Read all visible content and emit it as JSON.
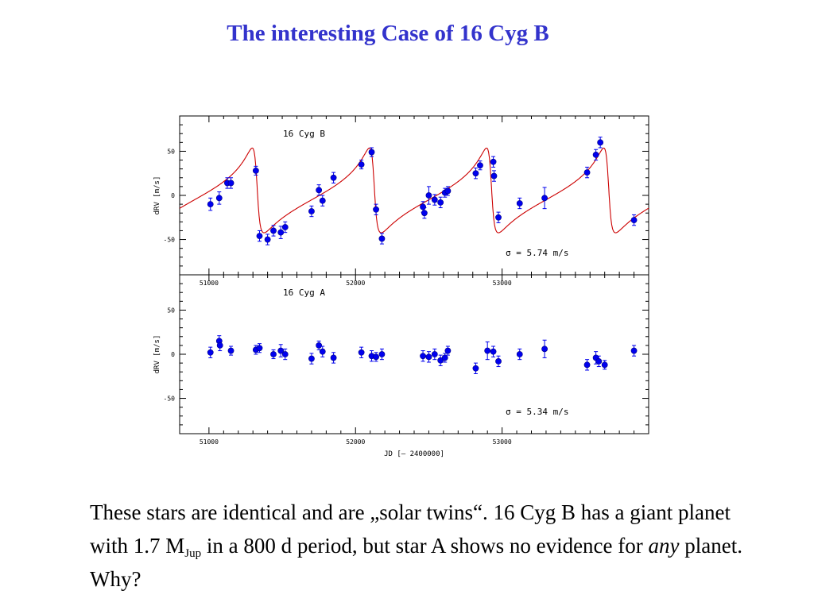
{
  "slide": {
    "title": "The interesting Case of 16 Cyg B",
    "body": {
      "part1": "These stars are identical and are „solar twins“. 16 Cyg B has a giant planet with 1.7 M",
      "sub": "Jup",
      "part2": " in a 800 d period, but star A shows no evidence for ",
      "emphasis": "any",
      "part3": " planet. Why?"
    }
  },
  "colors": {
    "title": "#3333cc",
    "points": "#0000ee",
    "fit_curve": "#cc0000",
    "axes": "#000000"
  },
  "chart_data": [
    {
      "type": "scatter",
      "panel_label": "16 Cyg B",
      "ylabel": "dRV [m/s]",
      "xlabel": "",
      "xlim": [
        50800,
        54000
      ],
      "ylim": [
        -90,
        90
      ],
      "x_ticks": [
        51000,
        52000,
        53000
      ],
      "y_ticks": [
        50,
        0,
        -50
      ],
      "annotation": "σ = 5.74  m/s",
      "points": [
        {
          "x": 51010,
          "y": -10,
          "err": 7
        },
        {
          "x": 51070,
          "y": -3,
          "err": 7
        },
        {
          "x": 51125,
          "y": 14,
          "err": 6
        },
        {
          "x": 51150,
          "y": 14,
          "err": 6
        },
        {
          "x": 51320,
          "y": 28,
          "err": 5
        },
        {
          "x": 51345,
          "y": -46,
          "err": 6
        },
        {
          "x": 51400,
          "y": -50,
          "err": 6
        },
        {
          "x": 51440,
          "y": -40,
          "err": 6
        },
        {
          "x": 51490,
          "y": -42,
          "err": 7
        },
        {
          "x": 51520,
          "y": -36,
          "err": 6
        },
        {
          "x": 51700,
          "y": -18,
          "err": 6
        },
        {
          "x": 51750,
          "y": 6,
          "err": 6
        },
        {
          "x": 51775,
          "y": -6,
          "err": 6
        },
        {
          "x": 51850,
          "y": 20,
          "err": 6
        },
        {
          "x": 52040,
          "y": 35,
          "err": 5
        },
        {
          "x": 52110,
          "y": 49,
          "err": 5
        },
        {
          "x": 52140,
          "y": -16,
          "err": 6
        },
        {
          "x": 52180,
          "y": -49,
          "err": 6
        },
        {
          "x": 52460,
          "y": -13,
          "err": 6
        },
        {
          "x": 52470,
          "y": -20,
          "err": 6
        },
        {
          "x": 52500,
          "y": 0,
          "err": 10
        },
        {
          "x": 52540,
          "y": -5,
          "err": 6
        },
        {
          "x": 52580,
          "y": -8,
          "err": 6
        },
        {
          "x": 52610,
          "y": 3,
          "err": 5
        },
        {
          "x": 52630,
          "y": 5,
          "err": 5
        },
        {
          "x": 52820,
          "y": 25,
          "err": 6
        },
        {
          "x": 52850,
          "y": 34,
          "err": 5
        },
        {
          "x": 52940,
          "y": 38,
          "err": 6
        },
        {
          "x": 52945,
          "y": 22,
          "err": 6
        },
        {
          "x": 52975,
          "y": -25,
          "err": 6
        },
        {
          "x": 53120,
          "y": -9,
          "err": 6
        },
        {
          "x": 53290,
          "y": -3,
          "err": 12
        },
        {
          "x": 53580,
          "y": 26,
          "err": 6
        },
        {
          "x": 53640,
          "y": 46,
          "err": 6
        },
        {
          "x": 53670,
          "y": 60,
          "err": 6
        },
        {
          "x": 53900,
          "y": -28,
          "err": 6
        }
      ],
      "fit_curve": true
    },
    {
      "type": "scatter",
      "panel_label": "16 Cyg A",
      "ylabel": "dRV [m/s]",
      "xlabel": "JD [– 2400000]",
      "xlim": [
        50800,
        54000
      ],
      "ylim": [
        -90,
        90
      ],
      "x_ticks": [
        51000,
        52000,
        53000
      ],
      "y_ticks": [
        50,
        0,
        -50
      ],
      "annotation": "σ = 5.34  m/s",
      "points": [
        {
          "x": 51010,
          "y": 2,
          "err": 6
        },
        {
          "x": 51070,
          "y": 15,
          "err": 6
        },
        {
          "x": 51075,
          "y": 10,
          "err": 6
        },
        {
          "x": 51150,
          "y": 4,
          "err": 5
        },
        {
          "x": 51320,
          "y": 5,
          "err": 5
        },
        {
          "x": 51345,
          "y": 7,
          "err": 5
        },
        {
          "x": 51440,
          "y": 0,
          "err": 5
        },
        {
          "x": 51490,
          "y": 4,
          "err": 7
        },
        {
          "x": 51520,
          "y": 0,
          "err": 6
        },
        {
          "x": 51700,
          "y": -5,
          "err": 6
        },
        {
          "x": 51750,
          "y": 10,
          "err": 5
        },
        {
          "x": 51775,
          "y": 3,
          "err": 6
        },
        {
          "x": 51850,
          "y": -4,
          "err": 6
        },
        {
          "x": 52040,
          "y": 2,
          "err": 6
        },
        {
          "x": 52110,
          "y": -2,
          "err": 6
        },
        {
          "x": 52140,
          "y": -3,
          "err": 5
        },
        {
          "x": 52180,
          "y": 0,
          "err": 6
        },
        {
          "x": 52460,
          "y": -2,
          "err": 6
        },
        {
          "x": 52500,
          "y": -3,
          "err": 6
        },
        {
          "x": 52540,
          "y": 0,
          "err": 6
        },
        {
          "x": 52580,
          "y": -7,
          "err": 6
        },
        {
          "x": 52610,
          "y": -4,
          "err": 5
        },
        {
          "x": 52630,
          "y": 4,
          "err": 5
        },
        {
          "x": 52820,
          "y": -16,
          "err": 6
        },
        {
          "x": 52900,
          "y": 4,
          "err": 10
        },
        {
          "x": 52940,
          "y": 3,
          "err": 6
        },
        {
          "x": 52975,
          "y": -8,
          "err": 6
        },
        {
          "x": 53120,
          "y": 0,
          "err": 6
        },
        {
          "x": 53290,
          "y": 6,
          "err": 10
        },
        {
          "x": 53580,
          "y": -12,
          "err": 6
        },
        {
          "x": 53640,
          "y": -4,
          "err": 7
        },
        {
          "x": 53660,
          "y": -8,
          "err": 6
        },
        {
          "x": 53700,
          "y": -12,
          "err": 5
        },
        {
          "x": 53900,
          "y": 4,
          "err": 6
        }
      ]
    }
  ]
}
